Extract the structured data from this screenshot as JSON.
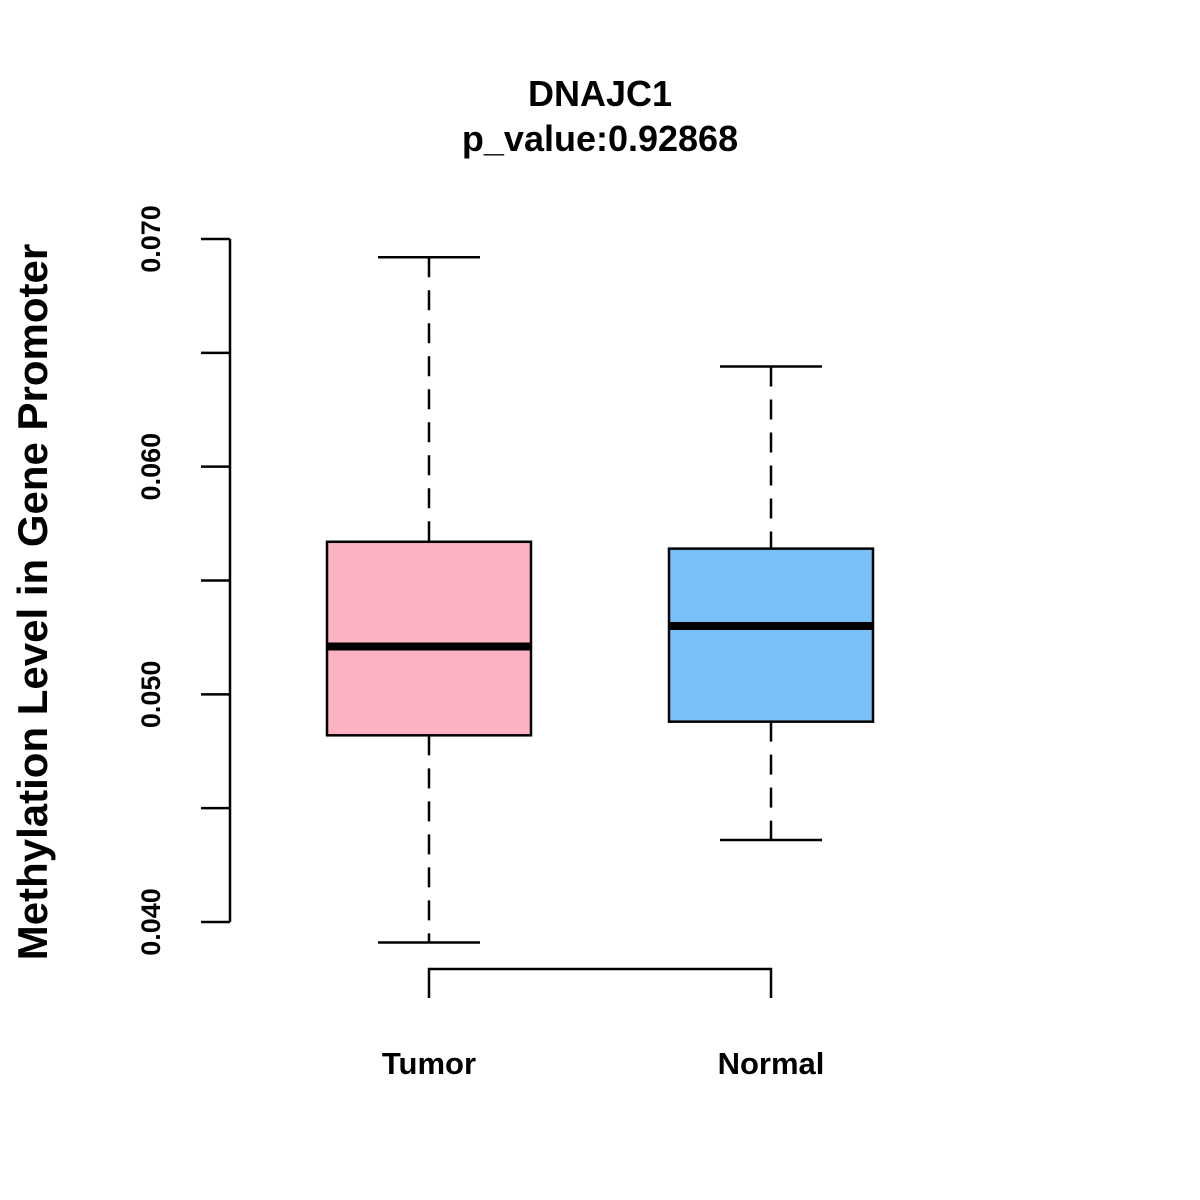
{
  "chart_data": {
    "type": "boxplot",
    "title": "DNAJC1",
    "subtitle": "p_value:0.92868",
    "xlabel": "",
    "ylabel": "Methylation Level in Gene Promoter",
    "ylim": [
      0.04,
      0.07
    ],
    "yticks": [
      0.04,
      0.045,
      0.05,
      0.055,
      0.06,
      0.065,
      0.07
    ],
    "ytick_labels": [
      "0.040",
      "",
      "0.050",
      "",
      "0.060",
      "",
      "0.070"
    ],
    "categories": [
      "Tumor",
      "Normal"
    ],
    "series": [
      {
        "name": "Tumor",
        "whisker_low": 0.0391,
        "q1": 0.0482,
        "median": 0.0521,
        "q3": 0.0567,
        "whisker_high": 0.0692,
        "color": "#FFB1C4"
      },
      {
        "name": "Normal",
        "whisker_low": 0.0436,
        "q1": 0.0488,
        "median": 0.053,
        "q3": 0.0564,
        "whisker_high": 0.0644,
        "color": "#78C1F8"
      }
    ],
    "comparison_bracket": [
      "Tumor",
      "Normal"
    ],
    "grid": false
  }
}
